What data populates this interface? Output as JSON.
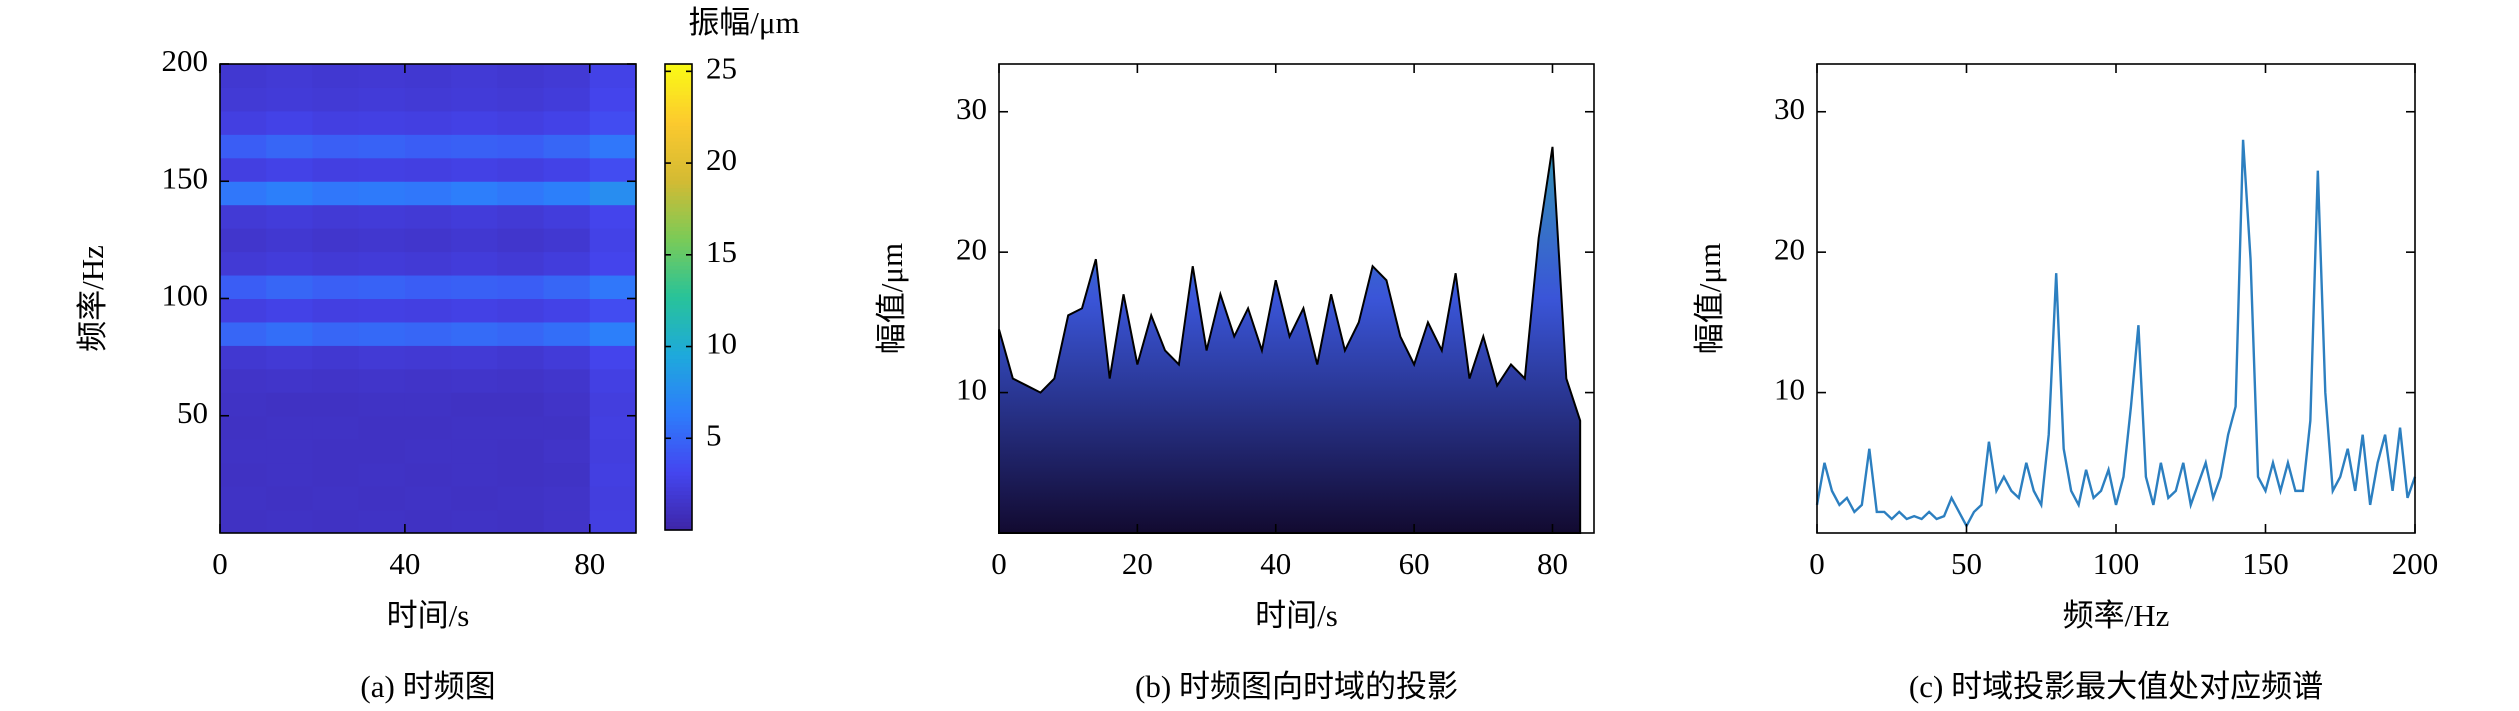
{
  "chart_data": [
    {
      "type": "heatmap",
      "caption": "(a) 时频图",
      "xlabel": "时间/s",
      "ylabel": "频率/Hz",
      "colorbar_label": "振幅/μm",
      "x_edges": [
        0,
        10,
        20,
        30,
        40,
        50,
        60,
        70,
        80,
        90
      ],
      "y_edges": [
        0,
        10,
        20,
        30,
        40,
        50,
        60,
        70,
        80,
        90,
        100,
        110,
        120,
        130,
        140,
        150,
        160,
        170,
        180,
        190,
        200
      ],
      "values": [
        [
          1.2,
          1.3,
          1.2,
          1.3,
          1.2,
          1.3,
          1.2,
          1.4,
          2.5
        ],
        [
          1.3,
          1.2,
          1.3,
          1.2,
          1.3,
          1.2,
          1.3,
          1.4,
          2.4
        ],
        [
          1.2,
          1.3,
          1.2,
          1.3,
          1.2,
          1.3,
          1.2,
          1.3,
          2.5
        ],
        [
          1.3,
          1.3,
          1.2,
          1.2,
          1.3,
          1.3,
          1.2,
          1.4,
          2.4
        ],
        [
          1.2,
          1.3,
          1.3,
          1.2,
          1.2,
          1.3,
          1.3,
          1.3,
          2.5
        ],
        [
          1.3,
          1.2,
          1.2,
          1.3,
          1.3,
          1.2,
          1.2,
          1.4,
          2.4
        ],
        [
          1.4,
          1.5,
          1.4,
          1.5,
          1.4,
          1.5,
          1.4,
          1.6,
          2.6
        ],
        [
          1.8,
          2,
          1.8,
          2,
          1.9,
          2,
          1.8,
          2.1,
          3
        ],
        [
          5,
          5.5,
          5,
          5.2,
          5,
          5.3,
          5,
          5.5,
          6.5
        ],
        [
          2.5,
          2.8,
          2.5,
          2.6,
          2.5,
          2.7,
          2.5,
          2.8,
          3.5
        ],
        [
          4.5,
          5,
          4.6,
          4.8,
          4.5,
          4.7,
          4.5,
          5,
          6
        ],
        [
          2,
          2.2,
          2,
          2.1,
          2,
          2.2,
          2,
          2.3,
          3
        ],
        [
          1.6,
          1.8,
          1.6,
          1.7,
          1.6,
          1.8,
          1.6,
          1.8,
          2.8
        ],
        [
          2,
          2.2,
          2,
          2.1,
          2,
          2.2,
          2,
          2.3,
          3
        ],
        [
          6,
          6.5,
          6,
          6.2,
          6,
          6.4,
          6,
          6.5,
          7.5
        ],
        [
          2.5,
          2.8,
          2.5,
          2.6,
          2.5,
          2.7,
          2.5,
          2.8,
          3.5
        ],
        [
          4.5,
          5,
          4.6,
          4.8,
          4.5,
          4.7,
          4.5,
          5,
          6
        ],
        [
          2.5,
          2.8,
          2.5,
          2.6,
          2.5,
          2.7,
          2.5,
          2.8,
          3.5
        ],
        [
          2,
          2.1,
          2,
          2.1,
          2,
          2.1,
          2,
          2.2,
          3
        ],
        [
          1.8,
          2,
          1.8,
          1.9,
          1.8,
          2,
          1.8,
          2,
          2.8
        ]
      ],
      "colormap": [
        "#3e26a8",
        "#4446f0",
        "#2d7dfb",
        "#1ea9dc",
        "#28c399",
        "#7bcb57",
        "#d4ba33",
        "#fcca2e",
        "#f9fb15"
      ],
      "xlim": [
        0,
        90
      ],
      "xticks": [
        0,
        40,
        80
      ],
      "ylim": [
        0,
        200
      ],
      "yticks": [
        50,
        100,
        150,
        200
      ],
      "clim": [
        0,
        25.4
      ],
      "cticks": [
        5,
        10,
        15,
        20,
        25
      ]
    },
    {
      "type": "area",
      "caption": "(b) 时频图向时域的投影",
      "xlabel": "时间/s",
      "ylabel": "幅值/μm",
      "x": [
        0,
        2,
        4,
        6,
        8,
        10,
        12,
        14,
        16,
        18,
        20,
        22,
        24,
        26,
        28,
        30,
        32,
        34,
        36,
        38,
        40,
        42,
        44,
        46,
        48,
        50,
        52,
        54,
        56,
        58,
        60,
        62,
        64,
        66,
        68,
        70,
        72,
        74,
        76,
        78,
        80,
        82,
        84
      ],
      "values": [
        14.5,
        11,
        10.5,
        10,
        11,
        15.5,
        16,
        19.5,
        11,
        17,
        12,
        15.5,
        13,
        12,
        19,
        13,
        17,
        14,
        16,
        13,
        18,
        14,
        16,
        12,
        17,
        13,
        15,
        19,
        18,
        14,
        12,
        15,
        13,
        18.5,
        11,
        14,
        10.5,
        12,
        11,
        21,
        27.5,
        11,
        8
      ],
      "colors": [
        "#2fb3a0",
        "#3a55d8",
        "#120a30"
      ],
      "xlim": [
        0,
        86
      ],
      "xticks": [
        0,
        20,
        40,
        60,
        80
      ],
      "ylim": [
        0,
        33.4
      ],
      "yticks": [
        10,
        20,
        30
      ]
    },
    {
      "type": "line",
      "caption": "(c) 时域投影最大值处对应频谱",
      "xlabel": "频率/Hz",
      "ylabel": "幅值/μm",
      "color": "#2c7fc0",
      "x": [
        0,
        2.5,
        5,
        7.5,
        10,
        12.5,
        15,
        17.5,
        20,
        22.5,
        25,
        27.5,
        30,
        32.5,
        35,
        37.5,
        40,
        42.5,
        45,
        47.5,
        50,
        52.5,
        55,
        57.5,
        60,
        62.5,
        65,
        67.5,
        70,
        72.5,
        75,
        77.5,
        80,
        82.5,
        85,
        87.5,
        90,
        92.5,
        95,
        97.5,
        100,
        102.5,
        105,
        107.5,
        110,
        112.5,
        115,
        117.5,
        120,
        122.5,
        125,
        127.5,
        130,
        132.5,
        135,
        137.5,
        140,
        142.5,
        145,
        147.5,
        150,
        152.5,
        155,
        157.5,
        160,
        162.5,
        165,
        167.5,
        170,
        172.5,
        175,
        177.5,
        180,
        182.5,
        185,
        187.5,
        190,
        192.5,
        195,
        197.5,
        200
      ],
      "values": [
        2,
        5,
        3,
        2,
        2.5,
        1.5,
        2,
        6,
        1.5,
        1.5,
        1,
        1.5,
        1,
        1.2,
        1,
        1.5,
        1,
        1.2,
        2.5,
        1.5,
        0.5,
        1.5,
        2,
        6.5,
        3,
        4,
        3,
        2.5,
        5,
        3,
        2,
        7,
        18.5,
        6,
        3,
        2,
        4.5,
        2.5,
        3,
        4.5,
        2,
        4,
        9,
        14.8,
        4,
        2,
        5,
        2.5,
        3,
        5,
        2,
        3.5,
        5,
        2.5,
        4,
        7,
        9,
        28,
        19.5,
        4,
        3,
        5,
        3,
        5,
        3,
        3,
        8,
        25.8,
        10,
        3,
        4,
        6,
        3,
        7,
        2,
        5,
        7,
        3,
        7.5,
        2.5,
        4
      ],
      "xlim": [
        0,
        200
      ],
      "xticks": [
        0,
        50,
        100,
        150,
        200
      ],
      "ylim": [
        0,
        33.4
      ],
      "yticks": [
        10,
        20,
        30
      ]
    }
  ]
}
